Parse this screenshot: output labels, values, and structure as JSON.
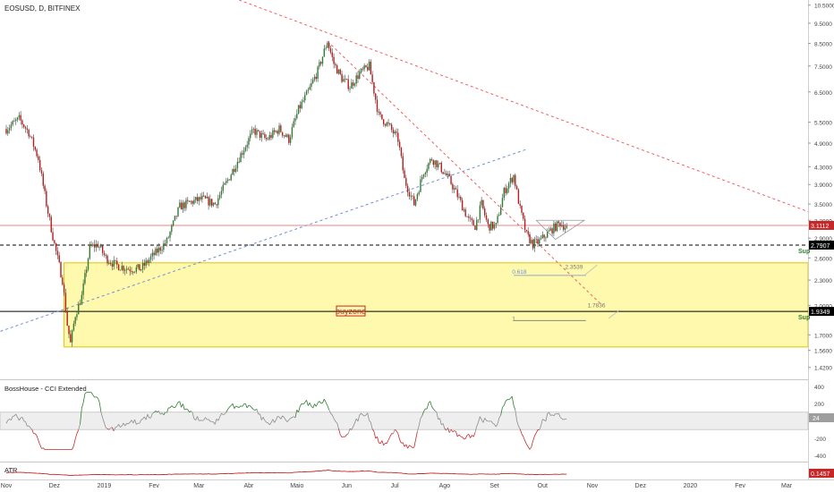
{
  "header": {
    "symbol_line": "EOSUSD, D, BITFINEX"
  },
  "chart_data": {
    "type": "candlestick",
    "price_axis": {
      "scale": "log",
      "range": [
        1.33,
        10.8
      ],
      "ticks": [
        "10.5000",
        "9.5000",
        "8.5000",
        "7.5000",
        "6.5000",
        "5.5000",
        "4.9000",
        "4.3000",
        "3.9000",
        "3.5000",
        "3.2000",
        "2.9000",
        "2.6000",
        "2.3000",
        "2.0000",
        "1.7000",
        "1.5600",
        "1.4200"
      ]
    },
    "time_axis": {
      "labels": [
        "Nov",
        "Dez",
        "2019",
        "Fev",
        "Mar",
        "Abr",
        "Maio",
        "Jun",
        "Jul",
        "Ago",
        "Set",
        "Out",
        "Nov",
        "Dez",
        "2020",
        "Fev",
        "Mar"
      ],
      "positions_day": [
        0,
        30,
        61,
        92,
        120,
        151,
        181,
        212,
        242,
        273,
        304,
        334,
        365,
        395,
        426,
        457,
        486
      ],
      "last_candle_day": 349
    },
    "price_anchors": [
      [
        0,
        5.3
      ],
      [
        8,
        5.6
      ],
      [
        14,
        5.2
      ],
      [
        20,
        4.5
      ],
      [
        25,
        3.5
      ],
      [
        30,
        2.8
      ],
      [
        35,
        2.3
      ],
      [
        38,
        1.8
      ],
      [
        40,
        1.62
      ],
      [
        43,
        1.9
      ],
      [
        47,
        2.1
      ],
      [
        52,
        2.75
      ],
      [
        57,
        2.8
      ],
      [
        62,
        2.6
      ],
      [
        68,
        2.5
      ],
      [
        76,
        2.45
      ],
      [
        84,
        2.45
      ],
      [
        90,
        2.6
      ],
      [
        100,
        2.85
      ],
      [
        108,
        3.45
      ],
      [
        116,
        3.55
      ],
      [
        122,
        3.6
      ],
      [
        130,
        3.5
      ],
      [
        138,
        4.0
      ],
      [
        146,
        4.6
      ],
      [
        154,
        5.25
      ],
      [
        162,
        5.0
      ],
      [
        170,
        5.3
      ],
      [
        176,
        5.0
      ],
      [
        182,
        5.9
      ],
      [
        188,
        6.5
      ],
      [
        194,
        7.3
      ],
      [
        200,
        8.6
      ],
      [
        204,
        7.6
      ],
      [
        209,
        7.0
      ],
      [
        214,
        6.7
      ],
      [
        220,
        7.2
      ],
      [
        226,
        7.5
      ],
      [
        232,
        5.7
      ],
      [
        238,
        5.4
      ],
      [
        244,
        5.0
      ],
      [
        248,
        4.0
      ],
      [
        254,
        3.5
      ],
      [
        260,
        4.2
      ],
      [
        265,
        4.5
      ],
      [
        270,
        4.3
      ],
      [
        276,
        4.0
      ],
      [
        282,
        3.6
      ],
      [
        288,
        3.2
      ],
      [
        292,
        3.1
      ],
      [
        296,
        3.5
      ],
      [
        300,
        3.1
      ],
      [
        305,
        3.1
      ],
      [
        310,
        3.75
      ],
      [
        316,
        4.1
      ],
      [
        320,
        3.4
      ],
      [
        324,
        2.95
      ],
      [
        328,
        2.8
      ],
      [
        332,
        2.85
      ],
      [
        336,
        2.95
      ],
      [
        340,
        3.05
      ],
      [
        345,
        3.15
      ],
      [
        349,
        3.07
      ]
    ],
    "horizontal_levels": [
      {
        "value": 3.1112,
        "label": "3.1112",
        "style": "solid",
        "color": "#f08080"
      },
      {
        "value": 2.7907,
        "label": "2.7907",
        "note": "Sup",
        "style": "dashed",
        "color": "#000000"
      },
      {
        "value": 1.9349,
        "label": "1.9349",
        "note": "Sup",
        "style": "solid",
        "color": "#000000"
      }
    ],
    "zone": {
      "label": "buyzone",
      "top": 2.53,
      "bottom": 1.59,
      "start_day": 36,
      "color": "#fff9ad"
    },
    "trendlines": [
      {
        "from": [
          145,
          10.8
        ],
        "to": [
          500,
          3.35
        ],
        "style": "dashed",
        "color": "#f06060"
      },
      {
        "from": [
          200,
          8.6
        ],
        "to": [
          370,
          2.02
        ],
        "style": "dashed",
        "color": "#f06060"
      },
      {
        "from": [
          -10,
          1.7
        ],
        "to": [
          325,
          4.75
        ],
        "style": "dashed",
        "color": "#6f8ed8"
      }
    ],
    "annotations": [
      {
        "text": "2.3539",
        "price": 2.45,
        "day": 348
      },
      {
        "text": "0.618",
        "price": 2.38,
        "day": 315
      },
      {
        "text": "1.7836",
        "price": 1.98,
        "day": 362
      },
      {
        "text": "1",
        "price": 1.84,
        "day": 315
      }
    ]
  },
  "cci_panel": {
    "title": "BossHouse - CCI Extended",
    "current_value": "24",
    "ticks": [
      "400",
      "200",
      "-200",
      "-400"
    ],
    "band": [
      100,
      -100
    ],
    "range": [
      -470,
      470
    ]
  },
  "atr_panel": {
    "title": "ATR",
    "current_value": "0.1457"
  },
  "colors": {
    "up": "#2e7d32",
    "down": "#b71c1c",
    "wick": "#333333",
    "cci_line": "#8c8c8c",
    "atr_line": "#c62828"
  }
}
